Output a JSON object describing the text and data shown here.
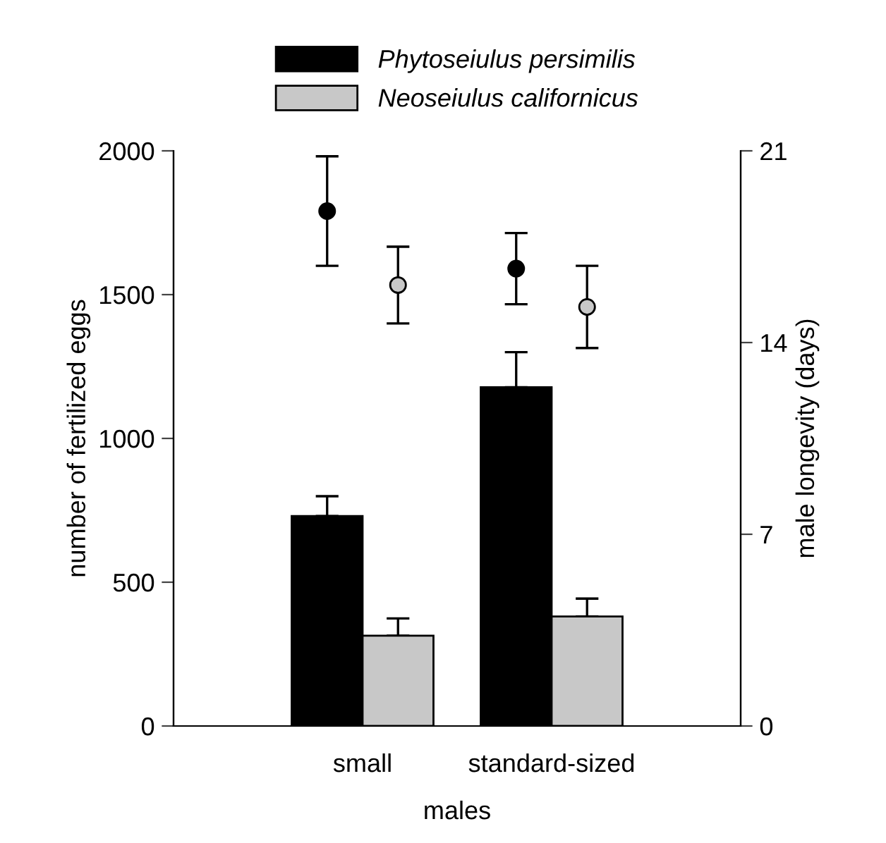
{
  "chart_data": {
    "type": "bar",
    "xlabel": "males",
    "ylabel": "number of fertilized eggs",
    "y2label": "male longevity (days)",
    "categories": [
      "small",
      "standard-sized"
    ],
    "series": [
      {
        "name": "Phytoseiulus persimilis",
        "color": "#000000",
        "values": [
          730,
          1178
        ],
        "errors": [
          [
            730,
            799
          ],
          [
            1178,
            1300
          ]
        ]
      },
      {
        "name": "Neoseiulus californicus",
        "color": "#c8c8c8",
        "values": [
          314,
          381
        ],
        "errors": [
          [
            314,
            374
          ],
          [
            381,
            443
          ]
        ]
      },
      {
        "type": "scatter",
        "axis": "y2",
        "color": "#000000",
        "values": [
          18.8,
          16.7
        ],
        "errors": [
          [
            16.8,
            20.8
          ],
          [
            15.4,
            18.0
          ]
        ]
      },
      {
        "type": "scatter",
        "axis": "y2",
        "color": "#c8c8c8",
        "values": [
          16.1,
          15.3
        ],
        "errors": [
          [
            14.7,
            17.5
          ],
          [
            13.8,
            16.8
          ]
        ]
      }
    ],
    "ylim": [
      0,
      2000
    ],
    "yticks": [
      0,
      500,
      1000,
      1500,
      2000
    ],
    "y2lim": [
      0,
      21
    ],
    "y2ticks": [
      0,
      7,
      14,
      21
    ],
    "marker": "circle",
    "grid": false,
    "legend": "top"
  }
}
